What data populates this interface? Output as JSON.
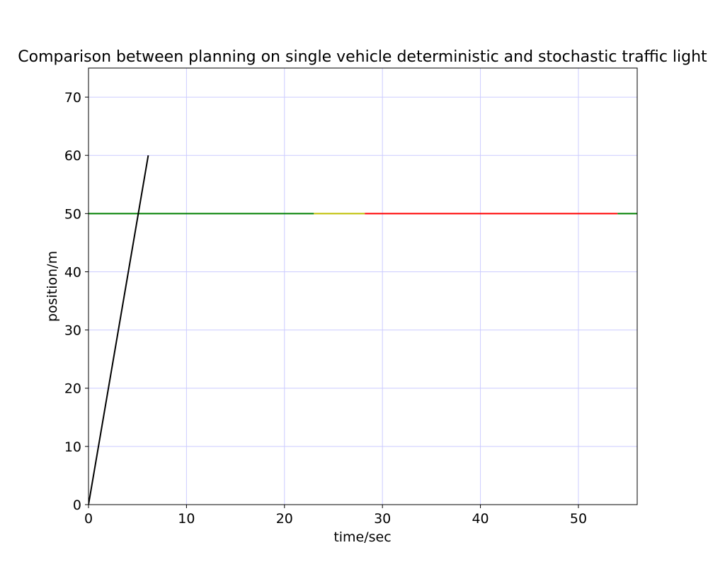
{
  "chart_data": {
    "type": "line",
    "title": "Comparison between planning on single vehicle deterministic and stochastic traffic light",
    "xlabel": "time/sec",
    "ylabel": "position/m",
    "xlim": [
      0,
      56
    ],
    "ylim": [
      0,
      75
    ],
    "xticks": [
      0,
      10,
      20,
      30,
      40,
      50
    ],
    "yticks": [
      0,
      10,
      20,
      30,
      40,
      50,
      60,
      70
    ],
    "grid": true,
    "grid_color": "#ccccff",
    "series": [
      {
        "color": "#000000",
        "points": [
          [
            0,
            0
          ],
          [
            6.1,
            60
          ]
        ]
      }
    ],
    "traffic_light": {
      "position": 50,
      "segments": [
        {
          "state": "green",
          "color": "#008000",
          "start": 0,
          "end": 23
        },
        {
          "state": "yellow",
          "color": "#bfbf00",
          "start": 23,
          "end": 28.2
        },
        {
          "state": "red",
          "color": "#ff0000",
          "start": 28.2,
          "end": 54
        },
        {
          "state": "green",
          "color": "#008000",
          "start": 54,
          "end": 56
        }
      ]
    }
  }
}
